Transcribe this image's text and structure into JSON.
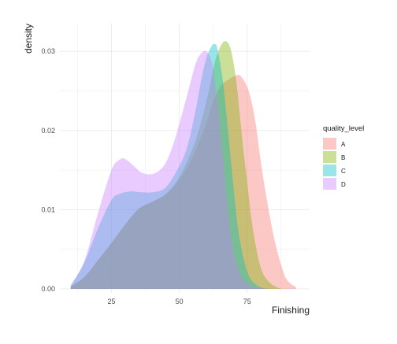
{
  "chart_data": {
    "type": "area",
    "chart_kind": "density",
    "xlabel": "Finishing",
    "ylabel": "density",
    "x_ticks": [
      25,
      50,
      75
    ],
    "y_ticks": [
      0.0,
      0.01,
      0.02,
      0.03
    ],
    "y_tick_labels": [
      "0.00",
      "0.01",
      "0.02",
      "0.03"
    ],
    "xlim": [
      6,
      98
    ],
    "ylim": [
      -0.0005,
      0.0335
    ],
    "grid": true,
    "legend": {
      "title": "quality_level",
      "position": "right"
    },
    "series": [
      {
        "name": "A",
        "color": "#F8766D",
        "x": [
          10,
          15,
          20,
          25,
          30,
          35,
          40,
          45,
          50,
          55,
          60,
          62,
          65,
          68,
          70,
          72,
          74,
          76,
          78,
          80,
          82,
          85,
          88,
          90,
          93
        ],
        "y": [
          0.0003,
          0.0015,
          0.0036,
          0.0058,
          0.0081,
          0.0101,
          0.011,
          0.0119,
          0.0138,
          0.0167,
          0.021,
          0.0232,
          0.0255,
          0.0264,
          0.0268,
          0.027,
          0.0262,
          0.0245,
          0.0212,
          0.0162,
          0.0118,
          0.0063,
          0.0025,
          0.001,
          0.0002
        ]
      },
      {
        "name": "B",
        "color": "#7CAE00",
        "x": [
          10,
          15,
          20,
          25,
          30,
          35,
          40,
          45,
          50,
          55,
          58,
          61,
          63,
          65,
          67,
          69,
          71,
          73,
          75,
          77,
          80,
          83,
          86,
          88
        ],
        "y": [
          0.0003,
          0.0015,
          0.0036,
          0.0058,
          0.0081,
          0.0101,
          0.011,
          0.012,
          0.0141,
          0.0178,
          0.021,
          0.0252,
          0.0285,
          0.0305,
          0.0313,
          0.0302,
          0.0262,
          0.0196,
          0.0135,
          0.0078,
          0.0027,
          0.0009,
          0.0002,
          0.0
        ]
      },
      {
        "name": "C",
        "color": "#00BFC4",
        "x": [
          10,
          15,
          20,
          25,
          28,
          32,
          36,
          40,
          45,
          50,
          53,
          56,
          58,
          60,
          62,
          63,
          64,
          66,
          68,
          70,
          72,
          75,
          78,
          81,
          84
        ],
        "y": [
          0.0004,
          0.0033,
          0.0076,
          0.0112,
          0.012,
          0.0123,
          0.0122,
          0.0122,
          0.0128,
          0.0155,
          0.018,
          0.0225,
          0.0262,
          0.0292,
          0.0307,
          0.0309,
          0.0304,
          0.0264,
          0.0198,
          0.0128,
          0.0068,
          0.0022,
          0.0006,
          0.0001,
          0.0
        ]
      },
      {
        "name": "D",
        "color": "#C77CFF",
        "x": [
          10,
          15,
          20,
          25,
          28,
          30,
          33,
          36,
          40,
          44,
          47,
          50,
          53,
          56,
          58,
          60,
          62,
          64,
          66,
          68,
          70,
          72,
          74,
          77,
          80,
          83
        ],
        "y": [
          0.0004,
          0.0035,
          0.0095,
          0.015,
          0.0163,
          0.0164,
          0.0156,
          0.0147,
          0.0145,
          0.0154,
          0.0175,
          0.0208,
          0.0246,
          0.0284,
          0.0297,
          0.03,
          0.0285,
          0.0238,
          0.0168,
          0.0096,
          0.0048,
          0.0023,
          0.001,
          0.0003,
          0.0001,
          0.0
        ]
      }
    ]
  }
}
